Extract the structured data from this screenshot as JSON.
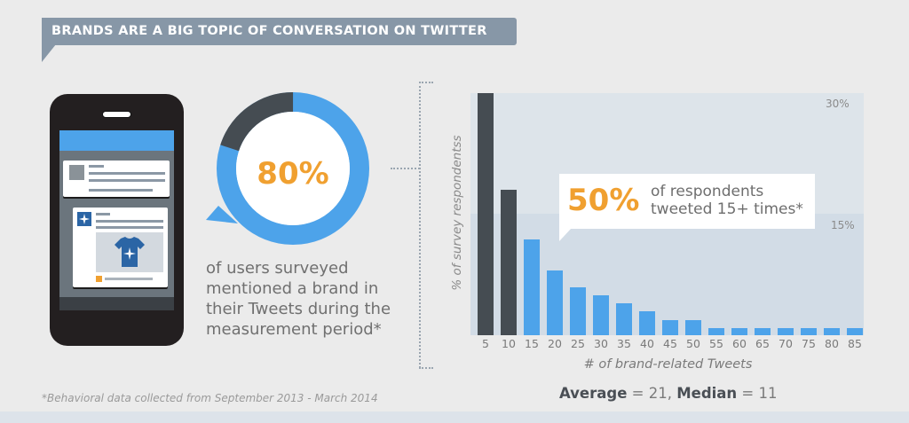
{
  "header": {
    "title": "BRANDS ARE A BIG TOPIC OF CONVERSATION ON TWITTER"
  },
  "donut": {
    "value_label": "80%",
    "value": 80,
    "caption_lines": [
      "of users surveyed",
      "mentioned a brand in",
      "their Tweets during the",
      "measurement period*"
    ],
    "colors": {
      "primary": "#4da3ea",
      "remainder": "#454c52",
      "text": "#f0a030"
    }
  },
  "footnote": "*Behavioral data collected from September 2013 - March 2014",
  "callout": {
    "value_label": "50%",
    "line1": "of respondents",
    "line2": "tweeted 15+ times*"
  },
  "stats": {
    "average_label": "Average",
    "average_value": " = 21, ",
    "median_label": "Median",
    "median_value": " = 11"
  },
  "chart_data": {
    "type": "bar",
    "title": "",
    "xlabel": "# of brand-related Tweets",
    "ylabel": "% of survey respondentss",
    "categories": [
      "5",
      "10",
      "15",
      "20",
      "25",
      "30",
      "35",
      "40",
      "45",
      "50",
      "55",
      "60",
      "65",
      "70",
      "75",
      "80",
      "85"
    ],
    "values": [
      30,
      18,
      11.9,
      8,
      5.9,
      4.9,
      4,
      3,
      1.9,
      1.9,
      0.9,
      0.9,
      0.9,
      0.9,
      0.9,
      0.9,
      0.9
    ],
    "bar_colors": [
      "#454c52",
      "#454c52",
      "#4da3ea",
      "#4da3ea",
      "#4da3ea",
      "#4da3ea",
      "#4da3ea",
      "#4da3ea",
      "#4da3ea",
      "#4da3ea",
      "#4da3ea",
      "#4da3ea",
      "#4da3ea",
      "#4da3ea",
      "#4da3ea",
      "#4da3ea",
      "#4da3ea"
    ],
    "ylim": [
      0,
      30
    ],
    "gridlines": [
      {
        "value": 30,
        "label": "30%"
      },
      {
        "value": 15,
        "label": "15%"
      }
    ],
    "annotations": [
      "50% of respondents tweeted 15+ times*",
      "Average = 21, Median = 11"
    ],
    "legend": "none"
  }
}
